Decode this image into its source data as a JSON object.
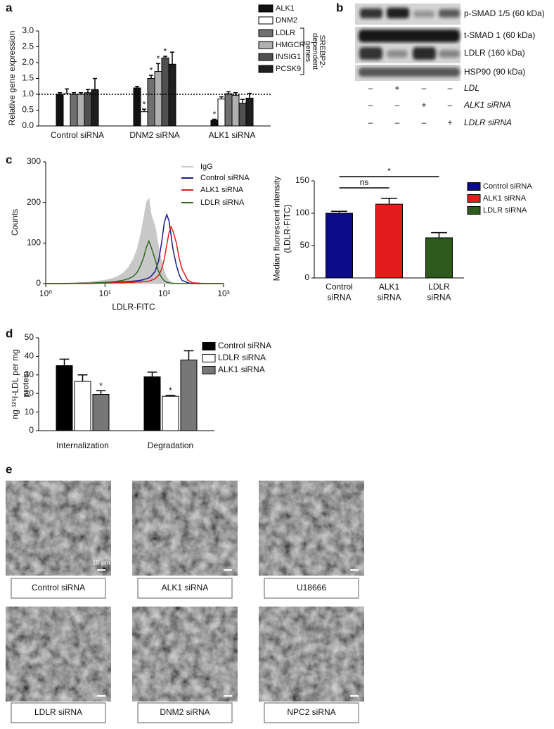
{
  "panel_labels": [
    "a",
    "b",
    "c",
    "d",
    "e"
  ],
  "chart_data": [
    {
      "type": "bar",
      "ylabel": "Relative gene expression",
      "categories": [
        "Control siRNA",
        "DNM2 siRNA",
        "ALK1 siRNA"
      ],
      "series": [
        {
          "name": "ALK1",
          "color": "#111111",
          "values": [
            1,
            1.2,
            0.18
          ],
          "errors": [
            0.05,
            0.05,
            0.03
          ],
          "significance": [
            null,
            null,
            "*"
          ]
        },
        {
          "name": "DNM2",
          "color": "#ffffff",
          "values": [
            1.02,
            0.45,
            0.85
          ],
          "errors": [
            0.15,
            0.08,
            0.07
          ],
          "significance": [
            null,
            "*",
            null
          ]
        },
        {
          "name": "LDLR",
          "color": "#707070",
          "values": [
            1,
            1.5,
            1.02
          ],
          "errors": [
            0.05,
            0.1,
            0.06
          ],
          "significance": [
            null,
            "*",
            null
          ]
        },
        {
          "name": "HMGCR",
          "color": "#b0b0b0",
          "values": [
            1,
            1.72,
            0.97
          ],
          "errors": [
            0.05,
            0.25,
            0.08
          ],
          "significance": [
            null,
            "*",
            null
          ]
        },
        {
          "name": "INSIG1",
          "color": "#505050",
          "values": [
            1.05,
            2.15,
            0.72
          ],
          "errors": [
            0.1,
            0.05,
            0.12
          ],
          "significance": [
            null,
            "*",
            null
          ]
        },
        {
          "name": "PCSK9",
          "color": "#1e1e1e",
          "values": [
            1.15,
            1.95,
            0.88
          ],
          "errors": [
            0.35,
            0.38,
            0.15
          ],
          "significance": [
            null,
            null,
            null
          ]
        }
      ],
      "legend_group_label": "SREBP2-dependent genes",
      "reference_line": 1,
      "ylim": [
        0,
        3
      ],
      "yticks": [
        {
          "value": 0,
          "label": "0.0"
        },
        0.5,
        {
          "value": 1,
          "label": "1.0"
        },
        1.5,
        {
          "value": 2,
          "label": "2.0"
        },
        2.5,
        {
          "value": 3,
          "label": "3.0"
        }
      ]
    },
    {
      "type": "line",
      "xlabel": "LDLR-FITC",
      "ylabel": "Counts",
      "log_x": true,
      "x": [
        1,
        2,
        5,
        10,
        15,
        20,
        25,
        30,
        35,
        40,
        45,
        50,
        55,
        60,
        70,
        80,
        90,
        100,
        110,
        120,
        130,
        140,
        160,
        180,
        200,
        250,
        300,
        500,
        1000
      ],
      "series": [
        {
          "name": "IgG",
          "color": "#c8c8c8",
          "fill": true,
          "values": [
            0,
            1,
            3,
            8,
            15,
            25,
            40,
            60,
            85,
            120,
            160,
            200,
            210,
            170,
            140,
            90,
            55,
            30,
            15,
            8,
            4,
            2,
            1,
            0,
            0,
            0,
            0,
            0,
            0
          ]
        },
        {
          "name": "Control siRNA",
          "color": "#1a1a8c",
          "values": [
            0,
            0,
            1,
            2,
            3,
            4,
            5,
            6,
            7,
            8,
            10,
            12,
            14,
            18,
            30,
            55,
            100,
            150,
            170,
            155,
            120,
            85,
            45,
            20,
            8,
            2,
            0,
            0,
            0
          ]
        },
        {
          "name": "ALK1 siRNA",
          "color": "#e41b1b",
          "values": [
            0,
            0,
            0,
            1,
            2,
            2,
            3,
            3,
            4,
            4,
            5,
            5,
            6,
            8,
            12,
            20,
            35,
            60,
            95,
            125,
            140,
            130,
            100,
            60,
            35,
            8,
            2,
            0,
            0
          ]
        },
        {
          "name": "LDLR siRNA",
          "color": "#2f6a1e",
          "values": [
            0,
            0,
            1,
            3,
            5,
            8,
            12,
            18,
            28,
            45,
            65,
            90,
            105,
            90,
            60,
            30,
            15,
            7,
            3,
            2,
            1,
            0,
            0,
            0,
            0,
            0,
            0,
            0,
            0
          ]
        }
      ],
      "xlim": [
        1,
        1000
      ],
      "xticks": [
        {
          "value": 1,
          "label": "10⁰"
        },
        {
          "value": 10,
          "label": "10¹"
        },
        {
          "value": 100,
          "label": "10²"
        },
        {
          "value": 1000,
          "label": "10³"
        }
      ],
      "ylim": [
        0,
        300
      ],
      "yticks": [
        0,
        100,
        200,
        300
      ]
    },
    {
      "type": "bar",
      "ylabel": "Median fluorescent intensity (LDLR-FITC)",
      "categories": [
        "Control siRNA",
        "ALK1 siRNA",
        "LDLR siRNA"
      ],
      "values": [
        100,
        114,
        62
      ],
      "errors": [
        3,
        9,
        8
      ],
      "colors": [
        "#0c0c8a",
        "#e41b1b",
        "#2f5a1e"
      ],
      "comparisons": [
        {
          "between": [
            0,
            1
          ],
          "label": "ns"
        },
        {
          "between": [
            0,
            2
          ],
          "label": "*"
        }
      ],
      "ylim": [
        0,
        150
      ],
      "yticks": [
        0,
        50,
        100,
        150
      ]
    },
    {
      "type": "bar",
      "ylabel": "ng ¹²⁵I-LDL per mg protein",
      "categories": [
        "Internalization",
        "Degradation"
      ],
      "series": [
        {
          "name": "Control siRNA",
          "color": "#000000",
          "values": [
            35,
            29
          ],
          "errors": [
            3.5,
            2.5
          ],
          "significance": [
            null,
            null
          ]
        },
        {
          "name": "LDLR siRNA",
          "color": "#ffffff",
          "values": [
            26.5,
            18.5
          ],
          "errors": [
            3.5,
            0.5
          ],
          "significance": [
            null,
            "*"
          ]
        },
        {
          "name": "ALK1 siRNA",
          "color": "#777777",
          "values": [
            19.5,
            38
          ],
          "errors": [
            2,
            5
          ],
          "significance": [
            "*",
            null
          ]
        }
      ],
      "ylim": [
        0,
        50
      ],
      "yticks": [
        0,
        10,
        20,
        30,
        40,
        50
      ]
    }
  ],
  "blot": {
    "rows": [
      "p-SMAD 1/5 (60 kDa)",
      "t-SMAD 1 (60 kDa)",
      "LDLR (160 kDa)",
      "HSP90 (90 kDa)"
    ],
    "conditions": [
      {
        "name": "LDL",
        "signs": [
          "–",
          "+",
          "–",
          "–"
        ]
      },
      {
        "name": "ALK1 siRNA",
        "signs": [
          "–",
          "–",
          "+",
          "–"
        ]
      },
      {
        "name": "LDLR siRNA",
        "signs": [
          "–",
          "–",
          "–",
          "+"
        ]
      }
    ]
  },
  "images": {
    "captions": [
      "Control siRNA",
      "ALK1 siRNA",
      "U18666",
      "LDLR siRNA",
      "DNM2 siRNA",
      "NPC2 siRNA"
    ],
    "scale_bar": "10 μm"
  }
}
